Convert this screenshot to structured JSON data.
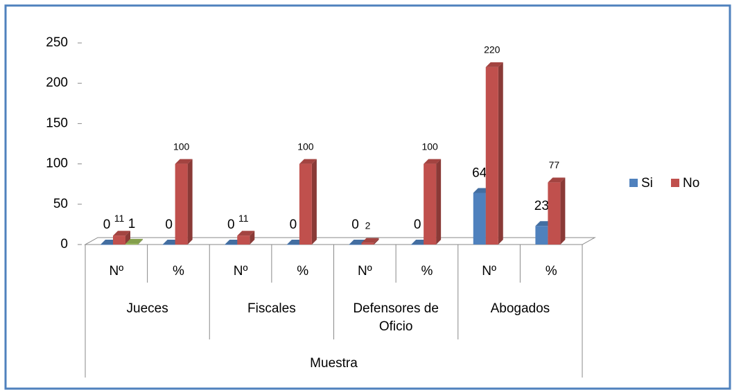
{
  "chart_data": {
    "type": "bar3d",
    "categories": [
      "Nº",
      "%",
      "Nº",
      "%",
      "Nº",
      "%",
      "Nº",
      "%"
    ],
    "groups": [
      "Jueces",
      "Fiscales",
      "Defensores de Oficio",
      "Abogados"
    ],
    "xlabel": "Muestra",
    "series": [
      {
        "name": "Si",
        "color": "#4f81bd",
        "values": [
          0,
          0,
          0,
          0,
          0,
          0,
          64,
          23
        ]
      },
      {
        "name": "No",
        "color": "#c0504d",
        "values": [
          11,
          100,
          11,
          100,
          2,
          100,
          220,
          77
        ]
      },
      {
        "color": "#9bbb59",
        "values": [
          1,
          null,
          null,
          null,
          null,
          null,
          null,
          null
        ]
      }
    ],
    "ylim": [
      0,
      250
    ],
    "yticks": [
      0,
      50,
      100,
      150,
      200,
      250
    ],
    "legend": "right"
  }
}
